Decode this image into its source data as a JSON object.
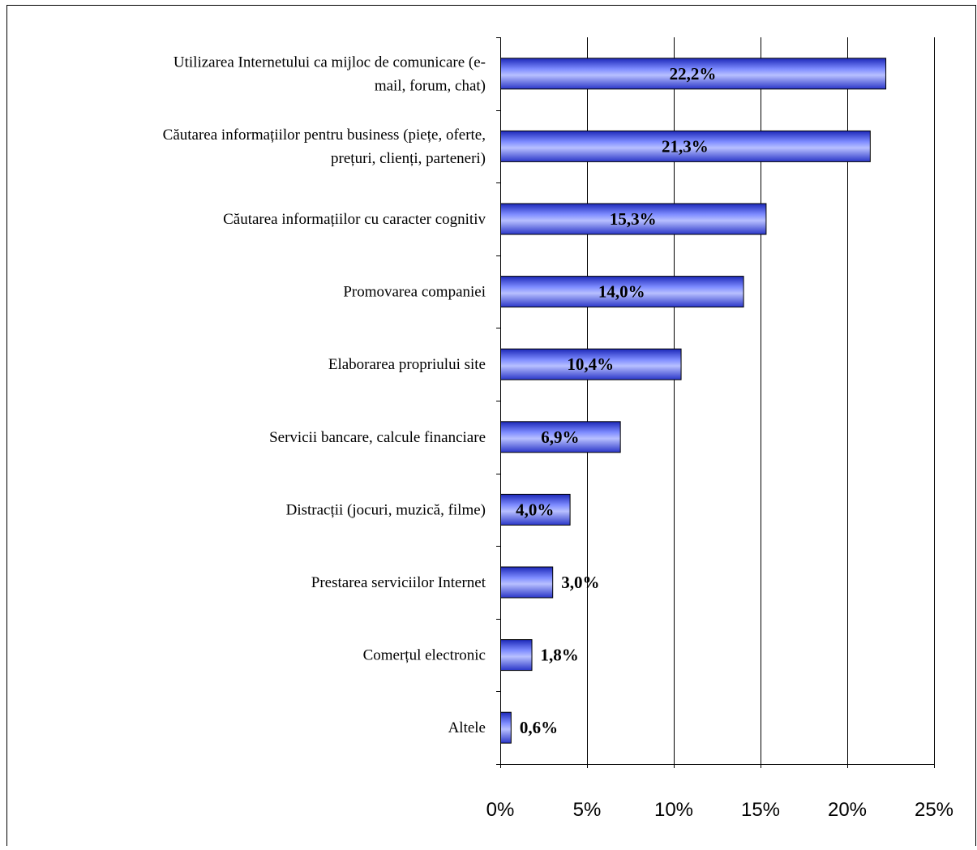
{
  "chart_data": {
    "type": "bar",
    "orientation": "horizontal",
    "categories": [
      [
        "Utilizarea Internetului ca mijloc de comunicare (e-",
        "mail, forum, chat)"
      ],
      [
        "Căutarea informațiilor pentru business (piețe, oferte,",
        "prețuri, clienți, parteneri)"
      ],
      [
        "Căutarea informațiilor cu caracter cognitiv"
      ],
      [
        "Promovarea companiei"
      ],
      [
        "Elaborarea propriului site"
      ],
      [
        "Servicii bancare, calcule financiare"
      ],
      [
        "Distracții (jocuri, muzică, filme)"
      ],
      [
        "Prestarea serviciilor Internet"
      ],
      [
        "Comerțul electronic"
      ],
      [
        "Altele"
      ]
    ],
    "values": [
      22.2,
      21.3,
      15.3,
      14.0,
      10.4,
      6.9,
      4.0,
      3.0,
      1.8,
      0.6
    ],
    "value_labels": [
      "22,2%",
      "21,3%",
      "15,3%",
      "14,0%",
      "10,4%",
      "6,9%",
      "4,0%",
      "3,0%",
      "1,8%",
      "0,6%"
    ],
    "xlim": [
      0,
      25
    ],
    "xticks": [
      0,
      5,
      10,
      15,
      20,
      25
    ],
    "xtick_labels": [
      "0%",
      "5%",
      "10%",
      "15%",
      "20%",
      "25%"
    ],
    "grid": "vertical gridlines",
    "bar_color": "#4a5cf0",
    "title": "",
    "xlabel": "",
    "ylabel": ""
  }
}
